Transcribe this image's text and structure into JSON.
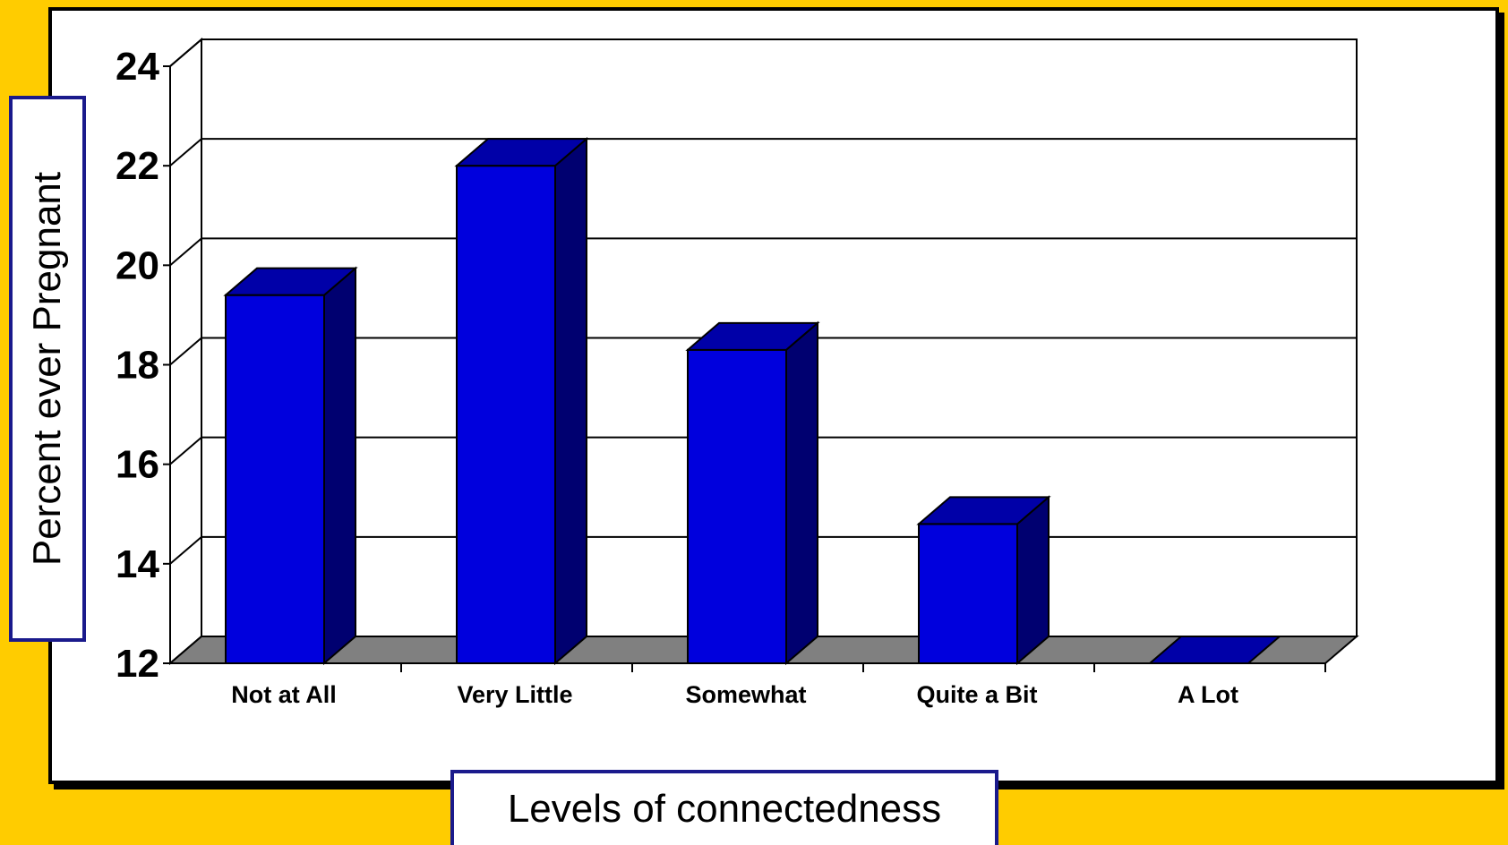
{
  "chart_data": {
    "type": "bar",
    "style": "3d",
    "categories": [
      "Not at All",
      "Very Little",
      "Somewhat",
      "Quite a Bit",
      "A Lot"
    ],
    "values": [
      19.4,
      22.0,
      18.3,
      14.8,
      12.0
    ],
    "title": "",
    "xlabel": "Levels of connectedness",
    "ylabel": "Percent ever Pregnant",
    "ylim": [
      12,
      24
    ],
    "yticks": [
      "12",
      "14",
      "16",
      "18",
      "20",
      "22",
      "24"
    ],
    "grid": true,
    "legend": "none",
    "colors": {
      "bar_front": "#0000DD",
      "bar_top": "#0000A8",
      "bar_side": "#000070",
      "floor": "#808080",
      "background": "#FFCC00"
    }
  }
}
